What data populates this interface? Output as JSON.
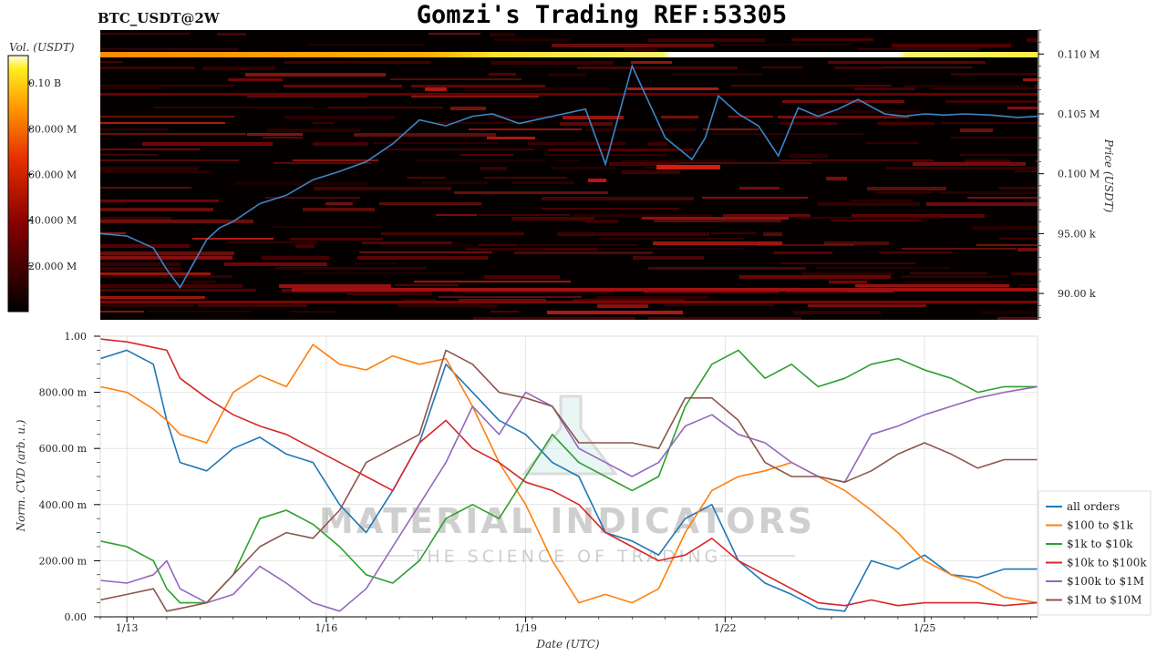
{
  "header": {
    "pair_label": "BTC_USDT@2W",
    "title": "Gomzi's Trading REF:53305"
  },
  "watermark": {
    "line1": "MATERIAL INDICATORS",
    "line2": "THE SCIENCE OF TRADING"
  },
  "chart_data": [
    {
      "type": "heatmap",
      "title": "",
      "colorbar_label": "Vol. (USDT)",
      "colorbar_ticks": [
        "20.000 M",
        "40.000 M",
        "60.000 M",
        "80.000 M",
        "0.10 B"
      ],
      "colorbar_values": [
        20000000,
        40000000,
        60000000,
        80000000,
        100000000
      ],
      "colorbar_range": [
        0,
        112000000
      ],
      "ylabel": "Price (USDT)",
      "y_tick_labels": [
        "90.00 k",
        "95.00 k",
        "0.100 M",
        "0.105 M",
        "0.110 M"
      ],
      "y_tick_values": [
        90000,
        95000,
        100000,
        105000,
        110000
      ],
      "ylim": [
        87800,
        112000
      ],
      "xlim": [
        0,
        14.1
      ],
      "price_series": {
        "color": "#3a86c8",
        "x": [
          0,
          0.4,
          0.8,
          1.0,
          1.2,
          1.4,
          1.6,
          1.8,
          2.0,
          2.4,
          2.8,
          3.2,
          3.6,
          4.0,
          4.4,
          4.8,
          5.2,
          5.6,
          5.9,
          6.3,
          6.8,
          7.3,
          7.6,
          8.0,
          8.5,
          8.9,
          9.1,
          9.3,
          9.6,
          9.9,
          10.2,
          10.5,
          10.8,
          11.1,
          11.4,
          11.8,
          12.1,
          12.4,
          12.7,
          13.0,
          13.4,
          13.8,
          14.1
        ],
        "y": [
          95000,
          94800,
          93800,
          92000,
          90500,
          92500,
          94500,
          95500,
          96000,
          97500,
          98200,
          99500,
          100200,
          101000,
          102500,
          104500,
          104000,
          104800,
          105000,
          104200,
          104800,
          105400,
          100800,
          109000,
          103000,
          101200,
          103000,
          106500,
          105000,
          104000,
          101500,
          105500,
          104800,
          105400,
          106200,
          105000,
          104800,
          105000,
          104900,
          105000,
          104900,
          104700,
          104800
        ]
      }
    },
    {
      "type": "line",
      "title": "",
      "xlabel": "Date (UTC)",
      "ylabel": "Norm. CVD (arb. u.)",
      "x_tick_labels": [
        "1/13",
        "1/16",
        "1/19",
        "1/22",
        "1/25"
      ],
      "x_tick_values": [
        0.4,
        3.4,
        6.4,
        9.4,
        12.4
      ],
      "y_tick_labels": [
        "0.00",
        "200.00 m",
        "400.00 m",
        "600.00 m",
        "800.00 m",
        "1.00"
      ],
      "y_tick_values": [
        0,
        0.2,
        0.4,
        0.6,
        0.8,
        1.0
      ],
      "xlim": [
        0,
        14.1
      ],
      "ylim": [
        0,
        1.0
      ],
      "legend_position": "right",
      "grid": true,
      "x": [
        0,
        0.4,
        0.8,
        1.0,
        1.2,
        1.6,
        2.0,
        2.4,
        2.8,
        3.2,
        3.6,
        4.0,
        4.4,
        4.8,
        5.2,
        5.6,
        6.0,
        6.4,
        6.8,
        7.2,
        7.6,
        8.0,
        8.4,
        8.8,
        9.2,
        9.6,
        10.0,
        10.4,
        10.8,
        11.2,
        11.6,
        12.0,
        12.4,
        12.8,
        13.2,
        13.6,
        14.1
      ],
      "series": [
        {
          "name": "all orders",
          "color": "#1f77b4",
          "values": [
            0.92,
            0.95,
            0.9,
            0.7,
            0.55,
            0.52,
            0.6,
            0.64,
            0.58,
            0.55,
            0.4,
            0.3,
            0.45,
            0.62,
            0.9,
            0.8,
            0.7,
            0.65,
            0.55,
            0.5,
            0.3,
            0.27,
            0.22,
            0.35,
            0.4,
            0.2,
            0.12,
            0.08,
            0.03,
            0.02,
            0.2,
            0.17,
            0.22,
            0.15,
            0.14,
            0.17,
            0.17
          ]
        },
        {
          "name": "$100 to $1k",
          "color": "#ff7f0e",
          "values": [
            0.82,
            0.8,
            0.74,
            0.7,
            0.65,
            0.62,
            0.8,
            0.86,
            0.82,
            0.97,
            0.9,
            0.88,
            0.93,
            0.9,
            0.92,
            0.75,
            0.55,
            0.4,
            0.2,
            0.05,
            0.08,
            0.05,
            0.1,
            0.3,
            0.45,
            0.5,
            0.52,
            0.55,
            0.5,
            0.45,
            0.38,
            0.3,
            0.2,
            0.15,
            0.12,
            0.07,
            0.05
          ]
        },
        {
          "name": "$1k to $10k",
          "color": "#2ca02c",
          "values": [
            0.27,
            0.25,
            0.2,
            0.1,
            0.05,
            0.05,
            0.15,
            0.35,
            0.38,
            0.33,
            0.25,
            0.15,
            0.12,
            0.2,
            0.35,
            0.4,
            0.35,
            0.5,
            0.65,
            0.55,
            0.5,
            0.45,
            0.5,
            0.75,
            0.9,
            0.95,
            0.85,
            0.9,
            0.82,
            0.85,
            0.9,
            0.92,
            0.88,
            0.85,
            0.8,
            0.82,
            0.82
          ]
        },
        {
          "name": "$10k to $100k",
          "color": "#d62728",
          "values": [
            0.99,
            0.98,
            0.96,
            0.95,
            0.85,
            0.78,
            0.72,
            0.68,
            0.65,
            0.6,
            0.55,
            0.5,
            0.45,
            0.62,
            0.7,
            0.6,
            0.55,
            0.48,
            0.45,
            0.4,
            0.3,
            0.25,
            0.2,
            0.22,
            0.28,
            0.2,
            0.15,
            0.1,
            0.05,
            0.04,
            0.06,
            0.04,
            0.05,
            0.05,
            0.05,
            0.04,
            0.05
          ]
        },
        {
          "name": "$100k to $1M",
          "color": "#9467bd",
          "values": [
            0.13,
            0.12,
            0.15,
            0.2,
            0.1,
            0.05,
            0.08,
            0.18,
            0.12,
            0.05,
            0.02,
            0.1,
            0.25,
            0.4,
            0.55,
            0.75,
            0.65,
            0.8,
            0.75,
            0.6,
            0.55,
            0.5,
            0.55,
            0.68,
            0.72,
            0.65,
            0.62,
            0.55,
            0.5,
            0.48,
            0.65,
            0.68,
            0.72,
            0.75,
            0.78,
            0.8,
            0.82
          ]
        },
        {
          "name": "$1M to $10M",
          "color": "#8c564b",
          "values": [
            0.06,
            0.08,
            0.1,
            0.02,
            0.03,
            0.05,
            0.15,
            0.25,
            0.3,
            0.28,
            0.38,
            0.55,
            0.6,
            0.65,
            0.95,
            0.9,
            0.8,
            0.78,
            0.75,
            0.62,
            0.62,
            0.62,
            0.6,
            0.78,
            0.78,
            0.7,
            0.55,
            0.5,
            0.5,
            0.48,
            0.52,
            0.58,
            0.62,
            0.58,
            0.53,
            0.56,
            0.56
          ]
        }
      ]
    }
  ]
}
